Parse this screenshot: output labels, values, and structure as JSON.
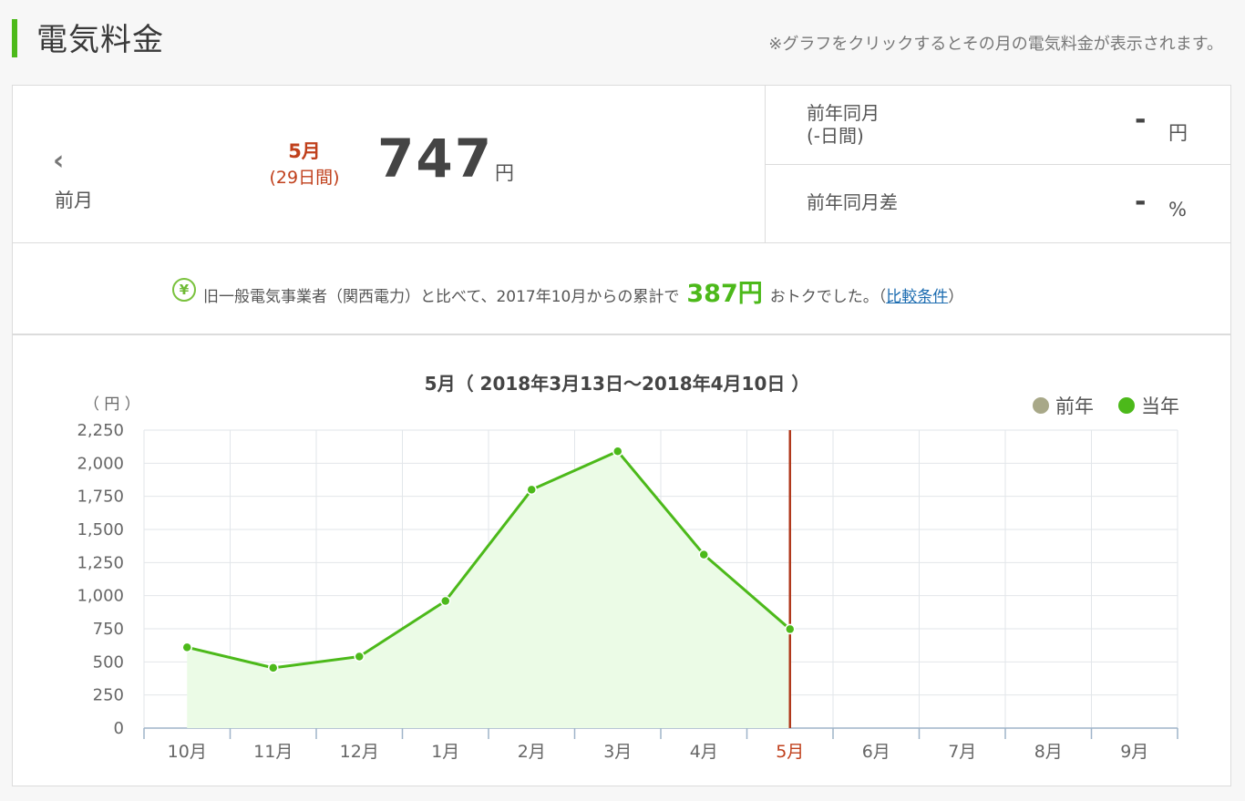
{
  "header": {
    "title": "電気料金",
    "hint": "※グラフをクリックするとその月の電気料金が表示されます。"
  },
  "summary": {
    "prev_chevron": "‹",
    "prev_label": "前月",
    "month": "5月",
    "days": "(29日間)",
    "amount": "747",
    "amount_unit": "円",
    "compare": [
      {
        "label_line1": "前年同月",
        "label_line2": "(-日間)",
        "value": "-",
        "unit": "円"
      },
      {
        "label_line1": "前年同月差",
        "label_line2": "",
        "value": "-",
        "unit": "%"
      }
    ]
  },
  "savings": {
    "icon": "¥",
    "text_before": "旧一般電気事業者（関西電力）と比べて、2017年10月からの累計で",
    "amount": "387円",
    "text_after": "おトクでした。（",
    "link": "比較条件",
    "close": "）"
  },
  "chart_data": {
    "type": "area",
    "title": "5月（ 2018年3月13日〜2018年4月10日 ）",
    "ylabel": "（ 円 ）",
    "xlabel": "",
    "categories": [
      "10月",
      "11月",
      "12月",
      "1月",
      "2月",
      "3月",
      "4月",
      "5月",
      "6月",
      "7月",
      "8月",
      "9月"
    ],
    "ylim": [
      0,
      2250
    ],
    "yticks": [
      0,
      250,
      500,
      750,
      1000,
      1250,
      1500,
      1750,
      2000,
      2250
    ],
    "ytick_labels": [
      "0",
      "250",
      "500",
      "750",
      "1,000",
      "1,250",
      "1,500",
      "1,750",
      "2,000",
      "2,250"
    ],
    "legend": [
      {
        "name": "前年",
        "color": "#a8a888"
      },
      {
        "name": "当年",
        "color": "#4cb91a"
      }
    ],
    "legend_position": "top-right",
    "grid": true,
    "series": [
      {
        "name": "当年",
        "values": [
          610,
          455,
          540,
          960,
          1800,
          2090,
          1310,
          747,
          null,
          null,
          null,
          null
        ]
      }
    ],
    "selected_month": "5月",
    "colors": {
      "line": "#4cb91a",
      "fill": "#ebfbe6",
      "marker": "#b0391c",
      "selected_label": "#c0401c"
    }
  }
}
